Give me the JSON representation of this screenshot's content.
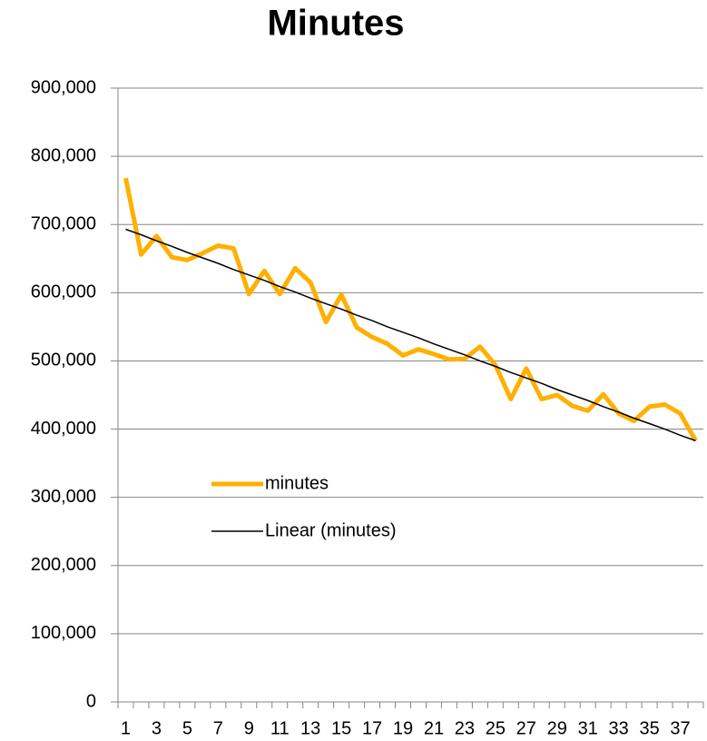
{
  "chart_data": {
    "type": "line",
    "title": "Minutes",
    "categories": [
      1,
      null,
      3,
      null,
      5,
      null,
      7,
      null,
      9,
      null,
      11,
      null,
      13,
      null,
      15,
      null,
      17,
      null,
      19,
      null,
      21,
      null,
      23,
      null,
      25,
      null,
      27,
      null,
      29,
      null,
      31,
      null,
      33,
      null,
      35,
      null,
      37,
      null
    ],
    "series": [
      {
        "name": "minutes",
        "color": "#ffb000",
        "values": [
          768000,
          656000,
          683000,
          652000,
          648000,
          658000,
          669000,
          665000,
          598000,
          632000,
          598000,
          636000,
          615000,
          557000,
          597000,
          549000,
          535000,
          525000,
          508000,
          517000,
          510000,
          502000,
          503000,
          521000,
          494000,
          444000,
          489000,
          444000,
          450000,
          434000,
          427000,
          451000,
          423000,
          412000,
          433000,
          436000,
          423000,
          383000
        ]
      },
      {
        "name": "Linear (minutes)",
        "color": "#000000",
        "values": [
          693000,
          685000,
          676000,
          668000,
          659000,
          651000,
          643000,
          634000,
          626000,
          618000,
          609000,
          601000,
          592000,
          584000,
          576000,
          567000,
          559000,
          550000,
          542000,
          534000,
          525000,
          517000,
          509000,
          500000,
          492000,
          483000,
          475000,
          467000,
          458000,
          450000,
          442000,
          433000,
          425000,
          416000,
          408000,
          400000,
          391000,
          383000
        ]
      }
    ],
    "ylim": [
      0,
      900000
    ],
    "yticks": [
      0,
      {
        "value": 100000,
        "label": "100,000"
      },
      {
        "value": 200000,
        "label": "200,000"
      },
      {
        "value": 300000,
        "label": "300,000"
      },
      {
        "value": 400000,
        "label": "400,000"
      },
      {
        "value": 500000,
        "label": "500,000"
      },
      {
        "value": 600000,
        "label": "600,000"
      },
      {
        "value": 700000,
        "label": "700,000"
      },
      {
        "value": 800000,
        "label": "800,000"
      },
      {
        "value": 900000,
        "label": "900,000"
      }
    ],
    "grid": true,
    "legend": "center"
  }
}
